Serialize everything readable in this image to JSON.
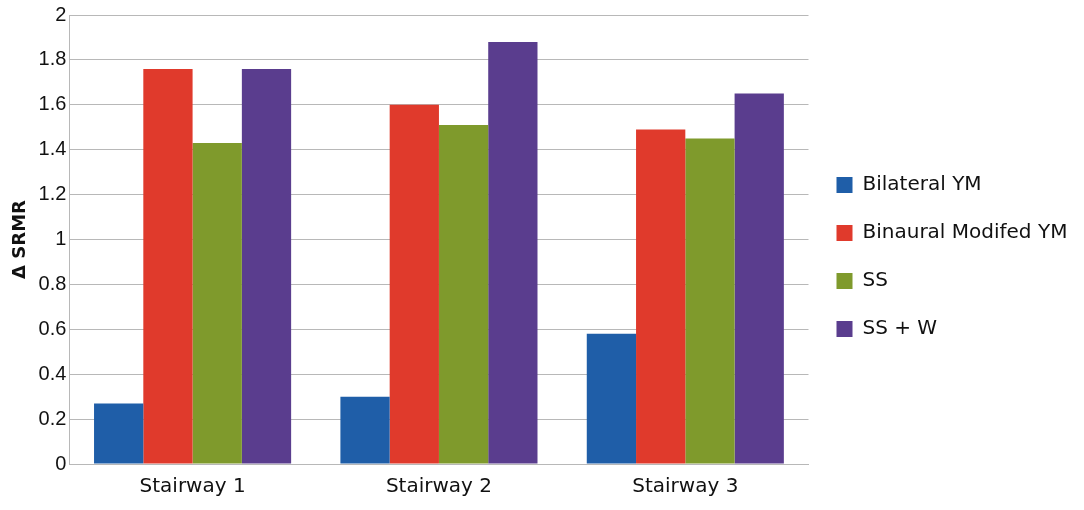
{
  "chart_data": {
    "type": "bar",
    "ylabel": "Δ SRMR",
    "categories": [
      "Stairway 1",
      "Stairway 2",
      "Stairway 3"
    ],
    "series": [
      {
        "name": "Bilateral YM",
        "color": "#1f5ea8",
        "values": [
          0.27,
          0.3,
          0.58
        ]
      },
      {
        "name": "Binaural Modifed YM",
        "color": "#e03a2c",
        "values": [
          1.76,
          1.6,
          1.49
        ]
      },
      {
        "name": "SS",
        "color": "#7f9a2c",
        "values": [
          1.43,
          1.51,
          1.45
        ]
      },
      {
        "name": "SS + W",
        "color": "#5a3d8e",
        "values": [
          1.76,
          1.88,
          1.65
        ]
      }
    ],
    "ylim": [
      0,
      2
    ],
    "yticks": [
      0,
      0.2,
      0.4,
      0.6,
      0.8,
      1,
      1.2,
      1.4,
      1.6,
      1.8,
      2
    ],
    "grid": "y",
    "legend": "right"
  }
}
